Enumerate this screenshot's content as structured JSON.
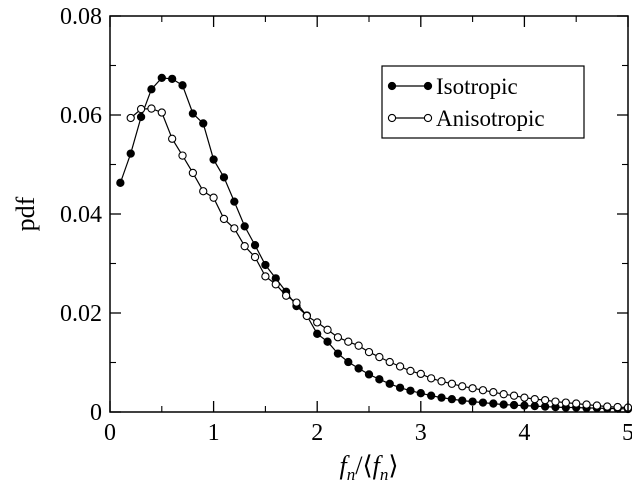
{
  "chart_data": {
    "type": "line",
    "title": "",
    "xlabel": {
      "base": "f",
      "sub": "n",
      "prefix": "",
      "mid": "/⟨",
      "suffix": "⟩"
    },
    "ylabel": "pdf",
    "xlim": [
      0,
      5
    ],
    "ylim": [
      0,
      0.08
    ],
    "xticks": [
      0,
      1,
      2,
      3,
      4,
      5
    ],
    "xtick_labels": [
      "0",
      "1",
      "2",
      "3",
      "4",
      "5"
    ],
    "yticks": [
      0,
      0.02,
      0.04,
      0.06,
      0.08
    ],
    "ytick_labels": [
      "0",
      "0.02",
      "0.04",
      "0.06",
      "0.08"
    ],
    "grid": false,
    "legend_position": "top-right",
    "series": [
      {
        "name": "Isotropic",
        "marker": "filled-circle",
        "color": "#000000",
        "x": [
          0.1,
          0.2,
          0.3,
          0.4,
          0.5,
          0.6,
          0.7,
          0.8,
          0.9,
          1.0,
          1.1,
          1.2,
          1.3,
          1.4,
          1.5,
          1.6,
          1.7,
          1.8,
          1.9,
          2.0,
          2.1,
          2.2,
          2.3,
          2.4,
          2.5,
          2.6,
          2.7,
          2.8,
          2.9,
          3.0,
          3.1,
          3.2,
          3.3,
          3.4,
          3.5,
          3.6,
          3.7,
          3.8,
          3.9,
          4.0,
          4.1,
          4.2,
          4.3,
          4.4,
          4.5,
          4.6,
          4.7,
          4.8,
          4.9,
          5.0
        ],
        "y": [
          0.0463,
          0.0522,
          0.0596,
          0.0652,
          0.0675,
          0.0673,
          0.066,
          0.0603,
          0.0583,
          0.051,
          0.0474,
          0.0425,
          0.0375,
          0.0337,
          0.0297,
          0.027,
          0.0243,
          0.0214,
          0.0195,
          0.0158,
          0.0142,
          0.0118,
          0.0101,
          0.0088,
          0.0076,
          0.0066,
          0.0057,
          0.0049,
          0.0043,
          0.0038,
          0.0033,
          0.0029,
          0.0026,
          0.0023,
          0.0021,
          0.0019,
          0.0017,
          0.0015,
          0.0014,
          0.0013,
          0.0012,
          0.0011,
          0.001,
          0.0009,
          0.0009,
          0.0008,
          0.0008,
          0.0007,
          0.0007,
          0.0006
        ]
      },
      {
        "name": "Anisotropic",
        "marker": "open-circle",
        "color": "#000000",
        "x": [
          0.2,
          0.3,
          0.4,
          0.5,
          0.6,
          0.7,
          0.8,
          0.9,
          1.0,
          1.1,
          1.2,
          1.3,
          1.4,
          1.5,
          1.6,
          1.7,
          1.8,
          1.9,
          2.0,
          2.1,
          2.2,
          2.3,
          2.4,
          2.5,
          2.6,
          2.7,
          2.8,
          2.9,
          3.0,
          3.1,
          3.2,
          3.3,
          3.4,
          3.5,
          3.6,
          3.7,
          3.8,
          3.9,
          4.0,
          4.1,
          4.2,
          4.3,
          4.4,
          4.5,
          4.6,
          4.7,
          4.8,
          4.9,
          5.0
        ],
        "y": [
          0.0594,
          0.0612,
          0.0613,
          0.0605,
          0.0552,
          0.0518,
          0.0483,
          0.0446,
          0.0433,
          0.039,
          0.0371,
          0.0335,
          0.0313,
          0.0274,
          0.0258,
          0.0235,
          0.0221,
          0.0194,
          0.0181,
          0.0166,
          0.0151,
          0.0142,
          0.0134,
          0.0121,
          0.0111,
          0.0101,
          0.0092,
          0.0083,
          0.0077,
          0.0068,
          0.0062,
          0.0057,
          0.0052,
          0.0048,
          0.0044,
          0.004,
          0.0036,
          0.0033,
          0.0029,
          0.0026,
          0.0024,
          0.0021,
          0.0019,
          0.0017,
          0.0015,
          0.0013,
          0.0011,
          0.001,
          0.0009
        ]
      }
    ]
  }
}
